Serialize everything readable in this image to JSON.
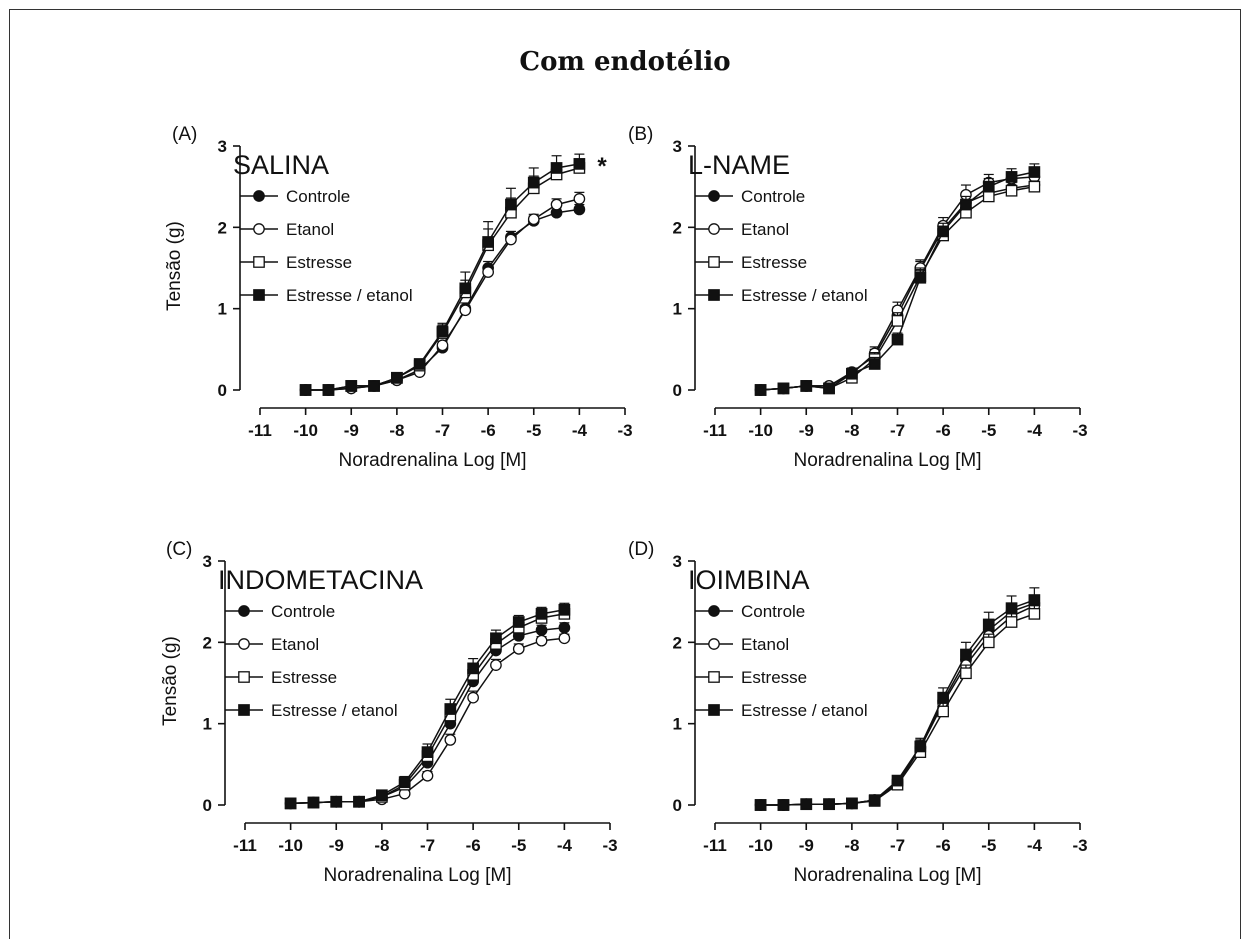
{
  "figure": {
    "title": "Com endotélio"
  },
  "chart_data": [
    {
      "type": "line",
      "panel_label": "(A)",
      "title": "SALINA",
      "xlabel": "Noradrenalina Log [M]",
      "ylabel": "Tensão (g)",
      "xlim": [
        -11,
        -3
      ],
      "ylim": [
        0,
        3
      ],
      "xticks": [
        "-11",
        "-10",
        "-9",
        "-8",
        "-7",
        "-6",
        "-5",
        "-4",
        "-3"
      ],
      "yticks": [
        "0",
        "1",
        "2",
        "3"
      ],
      "x": [
        -10,
        -9.5,
        -9,
        -8.5,
        -8,
        -7.5,
        -7,
        -6.5,
        -6,
        -5.5,
        -5,
        -4.5,
        -4
      ],
      "annotation": "*",
      "legend_position": "top-left",
      "series": [
        {
          "name": "Controle",
          "marker": "filled-circle",
          "values": [
            0.0,
            0.0,
            0.02,
            0.05,
            0.12,
            0.25,
            0.52,
            1.0,
            1.5,
            1.88,
            2.08,
            2.18,
            2.22
          ],
          "errors": [
            0.02,
            0.02,
            0.02,
            0.02,
            0.03,
            0.04,
            0.05,
            0.07,
            0.08,
            0.07,
            0.06,
            0.06,
            0.06
          ]
        },
        {
          "name": "Etanol",
          "marker": "open-circle",
          "values": [
            0.0,
            0.0,
            0.02,
            0.05,
            0.12,
            0.22,
            0.55,
            0.98,
            1.45,
            1.85,
            2.1,
            2.28,
            2.35
          ],
          "errors": [
            0.02,
            0.02,
            0.02,
            0.02,
            0.03,
            0.04,
            0.05,
            0.06,
            0.07,
            0.06,
            0.06,
            0.07,
            0.08
          ]
        },
        {
          "name": "Estresse",
          "marker": "open-square",
          "values": [
            0.0,
            0.0,
            0.05,
            0.05,
            0.15,
            0.3,
            0.7,
            1.2,
            1.78,
            2.18,
            2.48,
            2.65,
            2.73
          ],
          "errors": [
            0.02,
            0.02,
            0.03,
            0.03,
            0.04,
            0.06,
            0.1,
            0.15,
            0.2,
            0.18,
            0.15,
            0.12,
            0.1
          ]
        },
        {
          "name": "Estresse / etanol",
          "marker": "filled-square",
          "values": [
            0.0,
            0.0,
            0.05,
            0.05,
            0.15,
            0.32,
            0.72,
            1.25,
            1.82,
            2.28,
            2.55,
            2.73,
            2.78
          ],
          "errors": [
            0.02,
            0.02,
            0.03,
            0.03,
            0.04,
            0.06,
            0.1,
            0.2,
            0.25,
            0.2,
            0.18,
            0.15,
            0.12
          ]
        }
      ]
    },
    {
      "type": "line",
      "panel_label": "(B)",
      "title": "L-NAME",
      "xlabel": "Noradrenalina Log [M]",
      "ylabel": "",
      "xlim": [
        -11,
        -3
      ],
      "ylim": [
        0,
        3
      ],
      "xticks": [
        "-11",
        "-10",
        "-9",
        "-8",
        "-7",
        "-6",
        "-5",
        "-4",
        "-3"
      ],
      "yticks": [
        "0",
        "1",
        "2",
        "3"
      ],
      "x": [
        -10,
        -9.5,
        -9,
        -8.5,
        -8,
        -7.5,
        -7,
        -6.5,
        -6,
        -5.5,
        -5,
        -4.5,
        -4
      ],
      "legend_position": "top-left",
      "series": [
        {
          "name": "Controle",
          "marker": "filled-circle",
          "values": [
            0.0,
            0.02,
            0.05,
            0.05,
            0.22,
            0.42,
            0.92,
            1.48,
            1.98,
            2.3,
            2.42,
            2.48,
            2.52
          ],
          "errors": [
            0.02,
            0.02,
            0.02,
            0.02,
            0.05,
            0.08,
            0.1,
            0.1,
            0.08,
            0.08,
            0.08,
            0.07,
            0.07
          ]
        },
        {
          "name": "Etanol",
          "marker": "open-circle",
          "values": [
            0.0,
            0.02,
            0.05,
            0.05,
            0.2,
            0.45,
            0.98,
            1.5,
            2.02,
            2.4,
            2.55,
            2.6,
            2.62
          ],
          "errors": [
            0.02,
            0.02,
            0.02,
            0.02,
            0.05,
            0.08,
            0.1,
            0.1,
            0.1,
            0.12,
            0.1,
            0.08,
            0.08
          ]
        },
        {
          "name": "Estresse",
          "marker": "open-square",
          "values": [
            0.0,
            0.02,
            0.05,
            0.02,
            0.15,
            0.38,
            0.85,
            1.4,
            1.9,
            2.18,
            2.38,
            2.45,
            2.5
          ],
          "errors": [
            0.02,
            0.02,
            0.02,
            0.02,
            0.04,
            0.08,
            0.1,
            0.1,
            0.08,
            0.08,
            0.08,
            0.07,
            0.07
          ]
        },
        {
          "name": "Estresse / etanol",
          "marker": "filled-square",
          "values": [
            0.0,
            0.02,
            0.05,
            0.02,
            0.2,
            0.32,
            0.62,
            1.38,
            1.95,
            2.28,
            2.5,
            2.62,
            2.68
          ],
          "errors": [
            0.02,
            0.02,
            0.02,
            0.02,
            0.05,
            0.08,
            0.08,
            0.1,
            0.1,
            0.1,
            0.1,
            0.1,
            0.1
          ]
        }
      ]
    },
    {
      "type": "line",
      "panel_label": "(C)",
      "title": "INDOMETACINA",
      "xlabel": "Noradrenalina Log [M]",
      "ylabel": "Tensão (g)",
      "xlim": [
        -11,
        -3
      ],
      "ylim": [
        0,
        3
      ],
      "xticks": [
        "-11",
        "-10",
        "-9",
        "-8",
        "-7",
        "-6",
        "-5",
        "-4",
        "-3"
      ],
      "yticks": [
        "0",
        "1",
        "2",
        "3"
      ],
      "x": [
        -10,
        -9.5,
        -9,
        -8.5,
        -8,
        -7.5,
        -7,
        -6.5,
        -6,
        -5.5,
        -5,
        -4.5,
        -4
      ],
      "legend_position": "top-left",
      "series": [
        {
          "name": "Controle",
          "marker": "filled-circle",
          "values": [
            0.02,
            0.03,
            0.04,
            0.04,
            0.1,
            0.22,
            0.52,
            1.0,
            1.52,
            1.9,
            2.08,
            2.15,
            2.18
          ],
          "errors": [
            0.02,
            0.02,
            0.02,
            0.02,
            0.03,
            0.05,
            0.08,
            0.1,
            0.1,
            0.08,
            0.07,
            0.06,
            0.06
          ]
        },
        {
          "name": "Etanol",
          "marker": "open-circle",
          "values": [
            0.02,
            0.03,
            0.04,
            0.04,
            0.07,
            0.14,
            0.36,
            0.8,
            1.32,
            1.72,
            1.92,
            2.02,
            2.05
          ],
          "errors": [
            0.02,
            0.02,
            0.02,
            0.02,
            0.03,
            0.04,
            0.05,
            0.07,
            0.08,
            0.07,
            0.06,
            0.05,
            0.05
          ]
        },
        {
          "name": "Estresse",
          "marker": "open-square",
          "values": [
            0.02,
            0.03,
            0.04,
            0.04,
            0.1,
            0.25,
            0.6,
            1.1,
            1.6,
            1.98,
            2.18,
            2.3,
            2.35
          ],
          "errors": [
            0.02,
            0.02,
            0.02,
            0.02,
            0.03,
            0.06,
            0.1,
            0.12,
            0.12,
            0.1,
            0.08,
            0.08,
            0.08
          ]
        },
        {
          "name": "Estresse / etanol",
          "marker": "filled-square",
          "values": [
            0.02,
            0.03,
            0.04,
            0.04,
            0.12,
            0.28,
            0.65,
            1.18,
            1.68,
            2.05,
            2.25,
            2.35,
            2.4
          ],
          "errors": [
            0.02,
            0.02,
            0.02,
            0.02,
            0.04,
            0.07,
            0.1,
            0.12,
            0.12,
            0.1,
            0.08,
            0.08,
            0.08
          ]
        }
      ]
    },
    {
      "type": "line",
      "panel_label": "(D)",
      "title": "IOIMBINA",
      "xlabel": "Noradrenalina Log [M]",
      "ylabel": "",
      "xlim": [
        -11,
        -3
      ],
      "ylim": [
        0,
        3
      ],
      "xticks": [
        "-11",
        "-10",
        "-9",
        "-8",
        "-7",
        "-6",
        "-5",
        "-4",
        "-3"
      ],
      "yticks": [
        "0",
        "1",
        "2",
        "3"
      ],
      "x": [
        -10,
        -9.5,
        -9,
        -8.5,
        -8,
        -7.5,
        -7,
        -6.5,
        -6,
        -5.5,
        -5,
        -4.5,
        -4
      ],
      "legend_position": "top-left",
      "series": [
        {
          "name": "Controle",
          "marker": "filled-circle",
          "values": [
            0.0,
            0.0,
            0.01,
            0.01,
            0.02,
            0.06,
            0.28,
            0.72,
            1.28,
            1.78,
            2.15,
            2.38,
            2.48
          ],
          "errors": [
            0.01,
            0.01,
            0.01,
            0.01,
            0.02,
            0.03,
            0.05,
            0.08,
            0.1,
            0.1,
            0.1,
            0.1,
            0.1
          ]
        },
        {
          "name": "Etanol",
          "marker": "open-circle",
          "values": [
            0.0,
            0.0,
            0.01,
            0.01,
            0.02,
            0.06,
            0.26,
            0.7,
            1.25,
            1.72,
            2.08,
            2.32,
            2.45
          ],
          "errors": [
            0.01,
            0.01,
            0.01,
            0.01,
            0.02,
            0.03,
            0.05,
            0.08,
            0.1,
            0.1,
            0.1,
            0.1,
            0.1
          ]
        },
        {
          "name": "Estresse",
          "marker": "open-square",
          "values": [
            0.0,
            0.0,
            0.01,
            0.01,
            0.02,
            0.05,
            0.25,
            0.65,
            1.15,
            1.62,
            2.0,
            2.25,
            2.35
          ],
          "errors": [
            0.01,
            0.01,
            0.01,
            0.01,
            0.02,
            0.03,
            0.05,
            0.08,
            0.1,
            0.1,
            0.1,
            0.1,
            0.1
          ]
        },
        {
          "name": "Estresse / etanol",
          "marker": "filled-square",
          "values": [
            0.0,
            0.0,
            0.01,
            0.01,
            0.02,
            0.06,
            0.3,
            0.72,
            1.32,
            1.85,
            2.22,
            2.42,
            2.52
          ],
          "errors": [
            0.01,
            0.01,
            0.01,
            0.01,
            0.02,
            0.03,
            0.06,
            0.1,
            0.12,
            0.15,
            0.15,
            0.15,
            0.15
          ]
        }
      ]
    }
  ]
}
